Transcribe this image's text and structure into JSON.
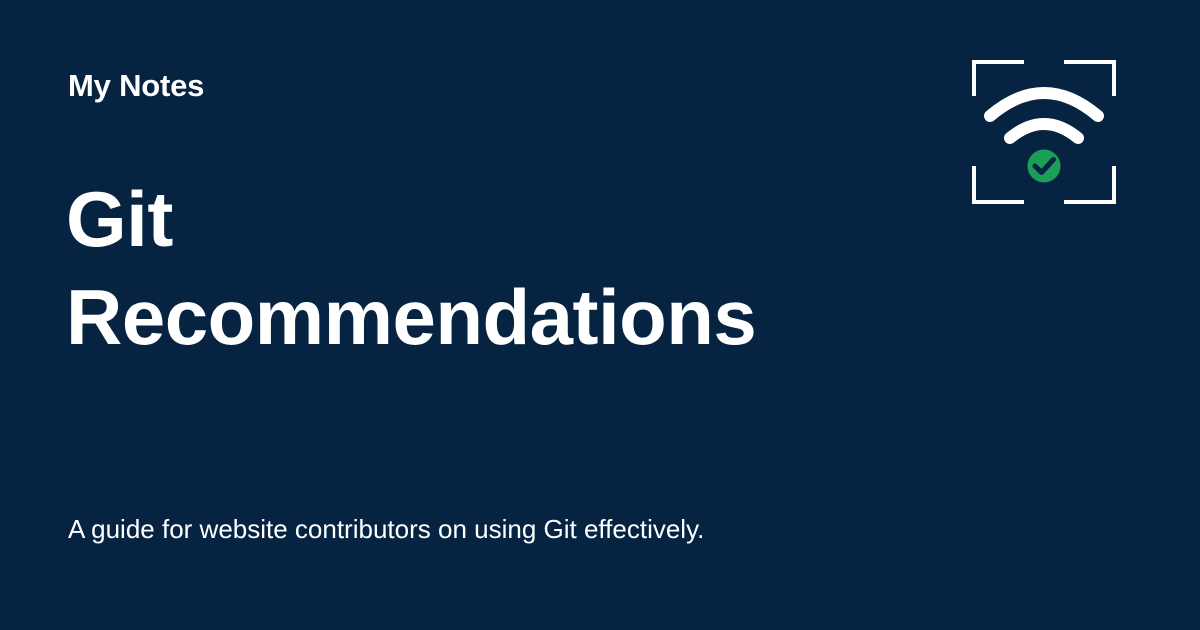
{
  "site": {
    "name": "My Notes"
  },
  "page": {
    "title_line1": "Git",
    "title_line2": "Recommendations",
    "description": "A guide for website contributors on using Git effectively."
  },
  "logo": {
    "icon": "wifi-check-icon",
    "frame_color": "#ffffff",
    "badge_color": "#1b9e56"
  },
  "colors": {
    "background": "#062441",
    "text": "#ffffff"
  }
}
